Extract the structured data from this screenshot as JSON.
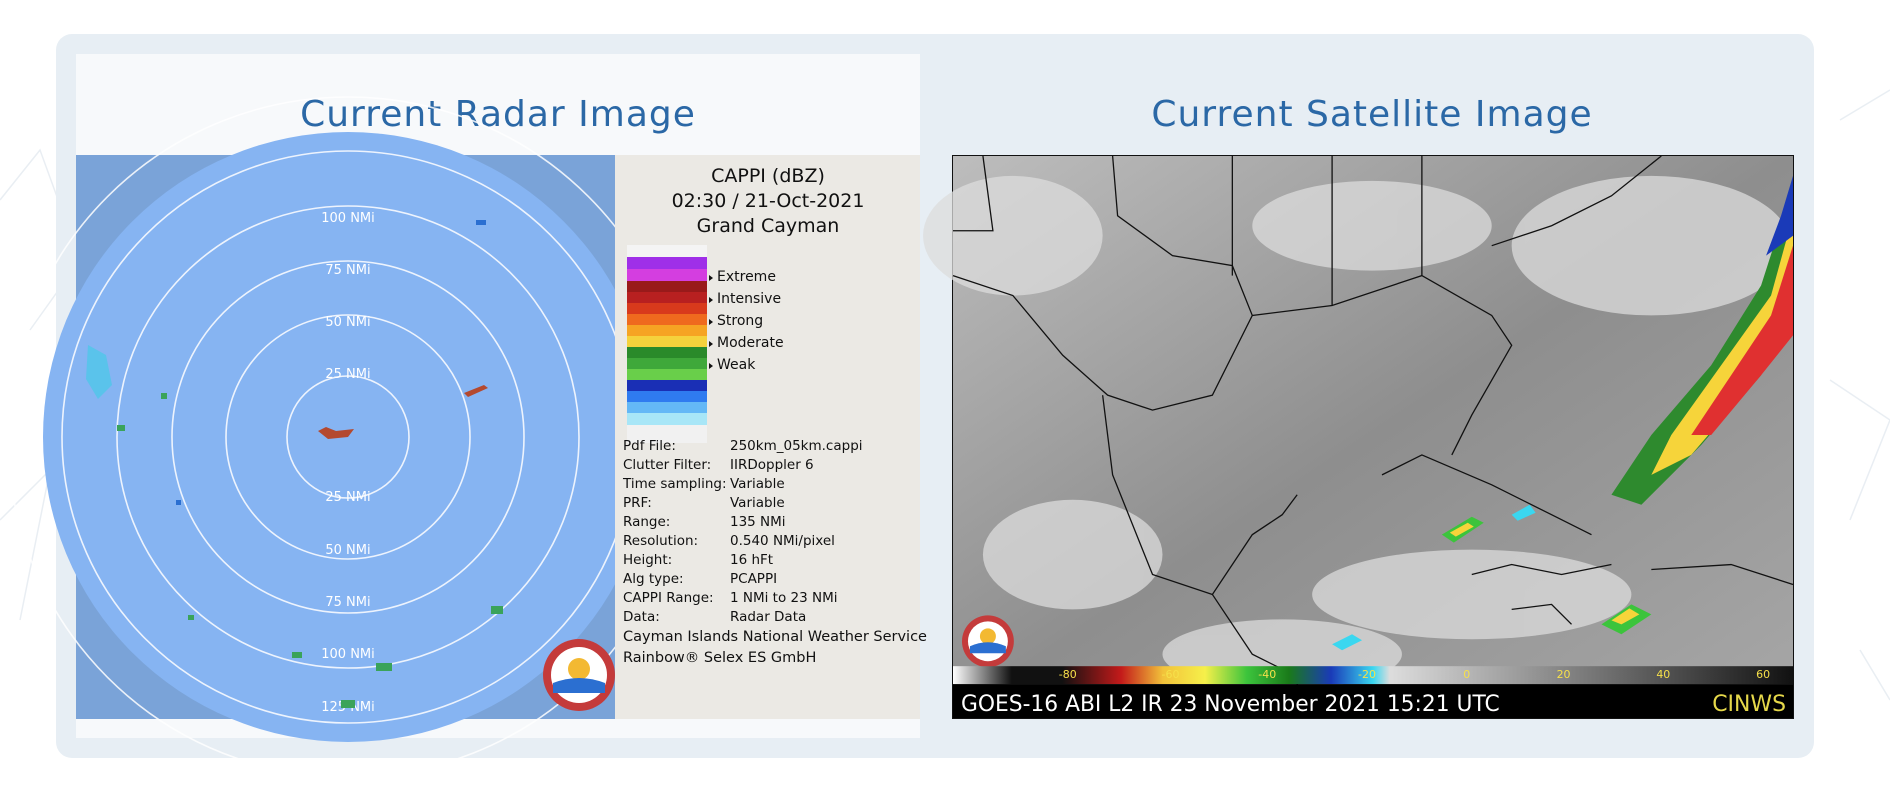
{
  "radar": {
    "title": "Current Radar Image",
    "rings": [
      "100 NMi",
      "75 NMi",
      "50 NMi",
      "25 NMi",
      "25 NMi",
      "50 NMi",
      "75 NMi",
      "100 NMi",
      "125 NMi"
    ],
    "header_lines": [
      "CAPPI (dBZ)",
      "02:30 / 21-Oct-2021",
      "Grand Cayman"
    ],
    "legend": [
      "Extreme",
      "Intensive",
      "Strong",
      "Moderate",
      "Weak"
    ],
    "info": [
      {
        "k": "Pdf File:",
        "v": "250km_05km.cappi"
      },
      {
        "k": "Clutter Filter:",
        "v": "IIRDoppler 6"
      },
      {
        "k": "Time sampling:",
        "v": "Variable"
      },
      {
        "k": "PRF:",
        "v": "Variable"
      },
      {
        "k": "Range:",
        "v": "135 NMi"
      },
      {
        "k": "Resolution:",
        "v": "0.540 NMi/pixel"
      },
      {
        "k": "Height:",
        "v": "16 hFt"
      },
      {
        "k": "Alg type:",
        "v": "PCAPPI"
      },
      {
        "k": "CAPPI Range:",
        "v": "1 NMi to 23 NMi"
      },
      {
        "k": "Data:",
        "v": "Radar Data"
      }
    ],
    "footer1": "Cayman Islands National Weather Service",
    "footer2": "Rainbow® Selex ES GmbH"
  },
  "satellite": {
    "title": "Current Satellite Image",
    "scale_labels": [
      "-80",
      "-60",
      "-40",
      "-20",
      "0",
      "20",
      "40",
      "60"
    ],
    "caption": "GOES-16 ABI L2  IR 23 November 2021 15:21 UTC",
    "brand": "CINWS"
  },
  "colors": {
    "title": "#2b68a6",
    "card": "#e7eef4",
    "brand_text": "#e6d84a"
  }
}
